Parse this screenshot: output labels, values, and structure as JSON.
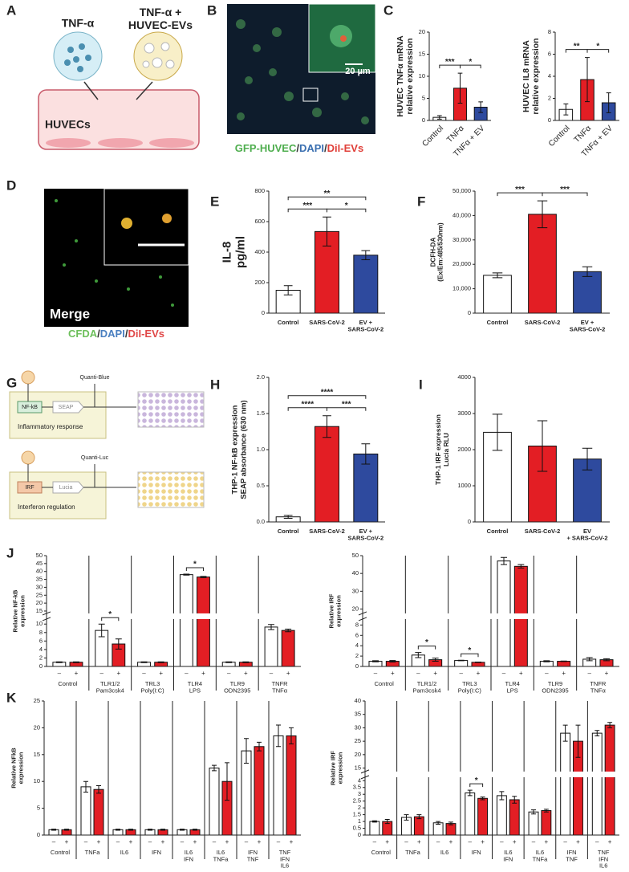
{
  "panel_labels": [
    "A",
    "B",
    "C",
    "D",
    "E",
    "F",
    "G",
    "H",
    "I",
    "J",
    "K"
  ],
  "panel_a": {
    "stimulus": "TNF-α",
    "stimulus_ev": [
      "TNF-α +",
      "HUVEC-EVs"
    ],
    "cells": "HUVECs"
  },
  "panel_b": {
    "scale_bar": "20 µm",
    "caption": [
      {
        "text": "GFP-HUVEC",
        "color": "#4fae4f"
      },
      {
        "text": "/",
        "color": "#333333"
      },
      {
        "text": "DAPI",
        "color": "#3a6fb0"
      },
      {
        "text": "/",
        "color": "#333333"
      },
      {
        "text": "DiI-EVs",
        "color": "#e0403a"
      }
    ]
  },
  "panel_d": {
    "label": "Merge",
    "caption": [
      {
        "text": "CFDA",
        "color": "#6cbf5a"
      },
      {
        "text": "/",
        "color": "#333333"
      },
      {
        "text": "DAPI",
        "color": "#4a7fc0"
      },
      {
        "text": "/",
        "color": "#333333"
      },
      {
        "text": "DiI-EVs",
        "color": "#e04848"
      }
    ]
  },
  "panel_g": {
    "reagent_1": "Quanti-Blue",
    "receptor_1": "NF-kB",
    "reporter_1": "SEAP",
    "pathway_1": "Inflammatory response",
    "reagent_2": "Quanti-Luc",
    "receptor_2": "IRF",
    "reporter_2": "Lucia",
    "pathway_2": "Interferon regulation"
  },
  "chart_data": [
    {
      "type": "bar",
      "ylabel": [
        "HUVEC TNFα mRNA",
        "relative expression"
      ],
      "categories": [
        "Control",
        "TNFα",
        "TNFα + EV"
      ],
      "values": [
        0.7,
        7.3,
        3.0
      ],
      "errors": [
        0.4,
        3.4,
        1.2
      ],
      "colors": [
        "#ffffff",
        "#e31e24",
        "#2e4a9e"
      ],
      "ylim": [
        0,
        20
      ],
      "yticks": [
        0,
        5,
        10,
        15,
        20
      ],
      "comparisons": [
        {
          "from": "Control",
          "to": "TNFα",
          "label": "***"
        },
        {
          "from": "TNFα",
          "to": "TNFα + EV",
          "label": "*"
        }
      ]
    },
    {
      "type": "bar",
      "ylabel": [
        "HUVEC IL8 mRNA",
        "relative expression"
      ],
      "categories": [
        "Control",
        "TNFα",
        "TNFα + EV"
      ],
      "values": [
        1.0,
        3.7,
        1.6
      ],
      "errors": [
        0.5,
        2.0,
        0.9
      ],
      "colors": [
        "#ffffff",
        "#e31e24",
        "#2e4a9e"
      ],
      "ylim": [
        0,
        8
      ],
      "yticks": [
        0,
        2,
        4,
        6,
        8
      ],
      "comparisons": [
        {
          "from": "Control",
          "to": "TNFα",
          "label": "**"
        },
        {
          "from": "TNFα",
          "to": "TNFα + EV",
          "label": "*"
        }
      ]
    },
    {
      "type": "bar",
      "ylabel": [
        "IL-8",
        "pg/ml"
      ],
      "categories": [
        "Control",
        "SARS-CoV-2",
        [
          "EV +",
          "SARS-CoV-2"
        ]
      ],
      "values": [
        150,
        535,
        380
      ],
      "errors": [
        30,
        95,
        30
      ],
      "colors": [
        "#ffffff",
        "#e31e24",
        "#2e4a9e"
      ],
      "ylim": [
        0,
        800
      ],
      "yticks": [
        0,
        200,
        400,
        600,
        800
      ],
      "comparisons": [
        {
          "from": "Control",
          "to": "SARS-CoV-2",
          "label": "***"
        },
        {
          "from": "SARS-CoV-2",
          "to": [
            "EV +",
            "SARS-CoV-2"
          ],
          "label": "*"
        },
        {
          "from": "Control",
          "to": [
            "EV +",
            "SARS-CoV-2"
          ],
          "label": "**"
        }
      ]
    },
    {
      "type": "bar",
      "ylabel": [
        "DCFH-DA",
        "(Ex/Em:485/530nm)"
      ],
      "categories": [
        "Control",
        "SARS-CoV-2",
        [
          "EV +",
          "SARS-CoV-2"
        ]
      ],
      "values": [
        15500,
        40500,
        17000
      ],
      "errors": [
        1000,
        5500,
        2000
      ],
      "colors": [
        "#ffffff",
        "#e31e24",
        "#2e4a9e"
      ],
      "ylim": [
        0,
        50000
      ],
      "yticks": [
        0,
        {
          "value": 10000,
          "label": "10,000"
        },
        {
          "value": 20000,
          "label": "20,000"
        },
        {
          "value": 30000,
          "label": "30,000"
        },
        {
          "value": 40000,
          "label": "40,000"
        },
        {
          "value": 50000,
          "label": "50,000"
        }
      ],
      "comparisons": [
        {
          "from": "Control",
          "to": "SARS-CoV-2",
          "label": "***"
        },
        {
          "from": "SARS-CoV-2",
          "to": [
            "EV +",
            "SARS-CoV-2"
          ],
          "label": "***"
        }
      ]
    },
    {
      "type": "bar",
      "ylabel": [
        "THP-1 NF-kB expression",
        "SEAP absorbance (630 nm)"
      ],
      "categories": [
        "Control",
        "SARS-CoV-2",
        [
          "EV +",
          "SARS-CoV-2"
        ]
      ],
      "values": [
        0.07,
        1.32,
        0.94
      ],
      "errors": [
        0.02,
        0.15,
        0.14
      ],
      "colors": [
        "#ffffff",
        "#e31e24",
        "#2e4a9e"
      ],
      "ylim": [
        0,
        2
      ],
      "yticks": [
        {
          "value": 0,
          "label": "0.0"
        },
        0.5,
        {
          "value": 1,
          "label": "1.0"
        },
        1.5,
        {
          "value": 2,
          "label": "2.0"
        }
      ],
      "comparisons": [
        {
          "from": "Control",
          "to": "SARS-CoV-2",
          "label": "****"
        },
        {
          "from": "SARS-CoV-2",
          "to": [
            "EV +",
            "SARS-CoV-2"
          ],
          "label": "***"
        },
        {
          "from": "Control",
          "to": [
            "EV +",
            "SARS-CoV-2"
          ],
          "label": "****"
        }
      ]
    },
    {
      "type": "bar",
      "ylabel": [
        "THP-1 IRF  expression",
        "Lucia RLU"
      ],
      "categories": [
        "Control",
        "SARS-CoV-2",
        [
          "EV",
          "+ SARS-CoV-2"
        ]
      ],
      "values": [
        2480,
        2100,
        1740
      ],
      "errors": [
        500,
        700,
        300
      ],
      "colors": [
        "#ffffff",
        "#e31e24",
        "#2e4a9e"
      ],
      "ylim": [
        0,
        4000
      ],
      "yticks": [
        0,
        1000,
        2000,
        3000,
        4000
      ],
      "comparisons": []
    },
    {
      "type": "grouped_bar",
      "ylabel": [
        "Relative NF-kB",
        "expression"
      ],
      "conditions": [
        "–",
        "+"
      ],
      "groups": [
        [
          "Control"
        ],
        [
          "TLR1/2",
          "Pam3csk4"
        ],
        [
          "TRL3",
          "Poly(I:C)"
        ],
        [
          "TLR4",
          "LPS"
        ],
        [
          "TLR9",
          "ODN2395"
        ],
        [
          "TNFR",
          "TNFα"
        ]
      ],
      "series": [
        {
          "color": "#ffffff",
          "values": [
            1,
            8.5,
            1,
            38,
            1,
            9.3
          ],
          "errors": [
            0.1,
            1.5,
            0.1,
            0.3,
            0.1,
            0.6
          ]
        },
        {
          "color": "#e31e24",
          "values": [
            1,
            5.3,
            1,
            36.5,
            1,
            8.5
          ],
          "errors": [
            0.1,
            1.2,
            0.1,
            0.4,
            0.1,
            0.3
          ]
        }
      ],
      "ylim": [
        0,
        50
      ],
      "ybreak": [
        11,
        14
      ],
      "yticks": [
        0,
        2,
        4,
        6,
        8,
        10,
        15,
        20,
        25,
        30,
        35,
        40,
        45,
        50
      ],
      "significance": [
        {
          "group": [
            "TLR1/2",
            "Pam3csk4"
          ],
          "label": "*"
        },
        {
          "group": [
            "TLR4",
            "LPS"
          ],
          "label": "*"
        }
      ]
    },
    {
      "type": "grouped_bar",
      "ylabel": [
        "Relative IRF",
        "expression"
      ],
      "conditions": [
        "–",
        "+"
      ],
      "groups": [
        [
          "Control"
        ],
        [
          "TLR1/2",
          "Pam3csk4"
        ],
        [
          "TRL3",
          "Poly(I:C)"
        ],
        [
          "TLR4",
          "LPS"
        ],
        [
          "TLR9",
          "ODN2395"
        ],
        [
          "TNFR",
          "TNFα"
        ]
      ],
      "series": [
        {
          "color": "#ffffff",
          "values": [
            1,
            2.2,
            1.15,
            47,
            1,
            1.4
          ],
          "errors": [
            0.1,
            0.5,
            0.05,
            2,
            0.1,
            0.3
          ]
        },
        {
          "color": "#e31e24",
          "values": [
            1,
            1.3,
            0.8,
            44,
            1,
            1.3
          ],
          "errors": [
            0.15,
            0.3,
            0.05,
            1,
            0.05,
            0.2
          ]
        }
      ],
      "ylim": [
        0,
        50
      ],
      "ybreak": [
        9,
        18
      ],
      "yticks": [
        0,
        2,
        4,
        6,
        8,
        20,
        30,
        40,
        50
      ],
      "significance": [
        {
          "group": [
            "TLR1/2",
            "Pam3csk4"
          ],
          "label": "*"
        },
        {
          "group": [
            "TRL3",
            "Poly(I:C)"
          ],
          "label": "*"
        }
      ]
    },
    {
      "type": "grouped_bar",
      "ylabel": [
        "Relative NFkB",
        "expression"
      ],
      "conditions": [
        "–",
        "+"
      ],
      "groups": [
        [
          "Control"
        ],
        [
          "TNFa"
        ],
        [
          "IL6"
        ],
        [
          "IFN"
        ],
        [
          "IL6",
          "IFN"
        ],
        [
          "IL6",
          "TNFa"
        ],
        [
          "IFN",
          "TNF"
        ],
        [
          "TNF",
          "IFN",
          "IL6"
        ]
      ],
      "series": [
        {
          "color": "#ffffff",
          "values": [
            1,
            9,
            1,
            1,
            1,
            12.5,
            15.7,
            18.5
          ],
          "errors": [
            0.1,
            1,
            0.1,
            0.1,
            0.1,
            0.5,
            2.3,
            2
          ]
        },
        {
          "color": "#e31e24",
          "values": [
            1,
            8.5,
            1,
            1,
            1,
            10,
            16.5,
            18.5
          ],
          "errors": [
            0.1,
            0.7,
            0.1,
            0.1,
            0.1,
            3.5,
            0.8,
            1.5
          ]
        }
      ],
      "ylim": [
        0,
        25
      ],
      "yticks": [
        0,
        5,
        10,
        15,
        20,
        25
      ],
      "significance": []
    },
    {
      "type": "grouped_bar",
      "ylabel": [
        "Relative IRF",
        "expression"
      ],
      "conditions": [
        "–",
        "+"
      ],
      "groups": [
        [
          "Control"
        ],
        [
          "TNFa"
        ],
        [
          "IL6"
        ],
        [
          "IFN"
        ],
        [
          "IL6",
          "IFN"
        ],
        [
          "IL6",
          "TNFa"
        ],
        [
          "IFN",
          "TNF"
        ],
        [
          "TNF",
          "IFN",
          "IL6"
        ]
      ],
      "series": [
        {
          "color": "#ffffff",
          "values": [
            1,
            1.3,
            0.9,
            3.1,
            2.9,
            1.7,
            28,
            28
          ],
          "errors": [
            0.05,
            0.2,
            0.1,
            0.2,
            0.3,
            0.15,
            3,
            1
          ]
        },
        {
          "color": "#e31e24",
          "values": [
            1,
            1.35,
            0.85,
            2.7,
            2.6,
            1.8,
            25,
            31
          ],
          "errors": [
            0.15,
            0.15,
            0.1,
            0.1,
            0.25,
            0.1,
            6,
            1
          ]
        }
      ],
      "ylim": [
        0,
        40
      ],
      "ybreak": [
        4.2,
        14
      ],
      "yticks": [
        0,
        0.5,
        1,
        1.5,
        2,
        2.5,
        3,
        3.5,
        4,
        15,
        20,
        25,
        30,
        35,
        40
      ],
      "significance": [
        {
          "group": [
            "IFN"
          ],
          "label": "*"
        }
      ]
    }
  ]
}
